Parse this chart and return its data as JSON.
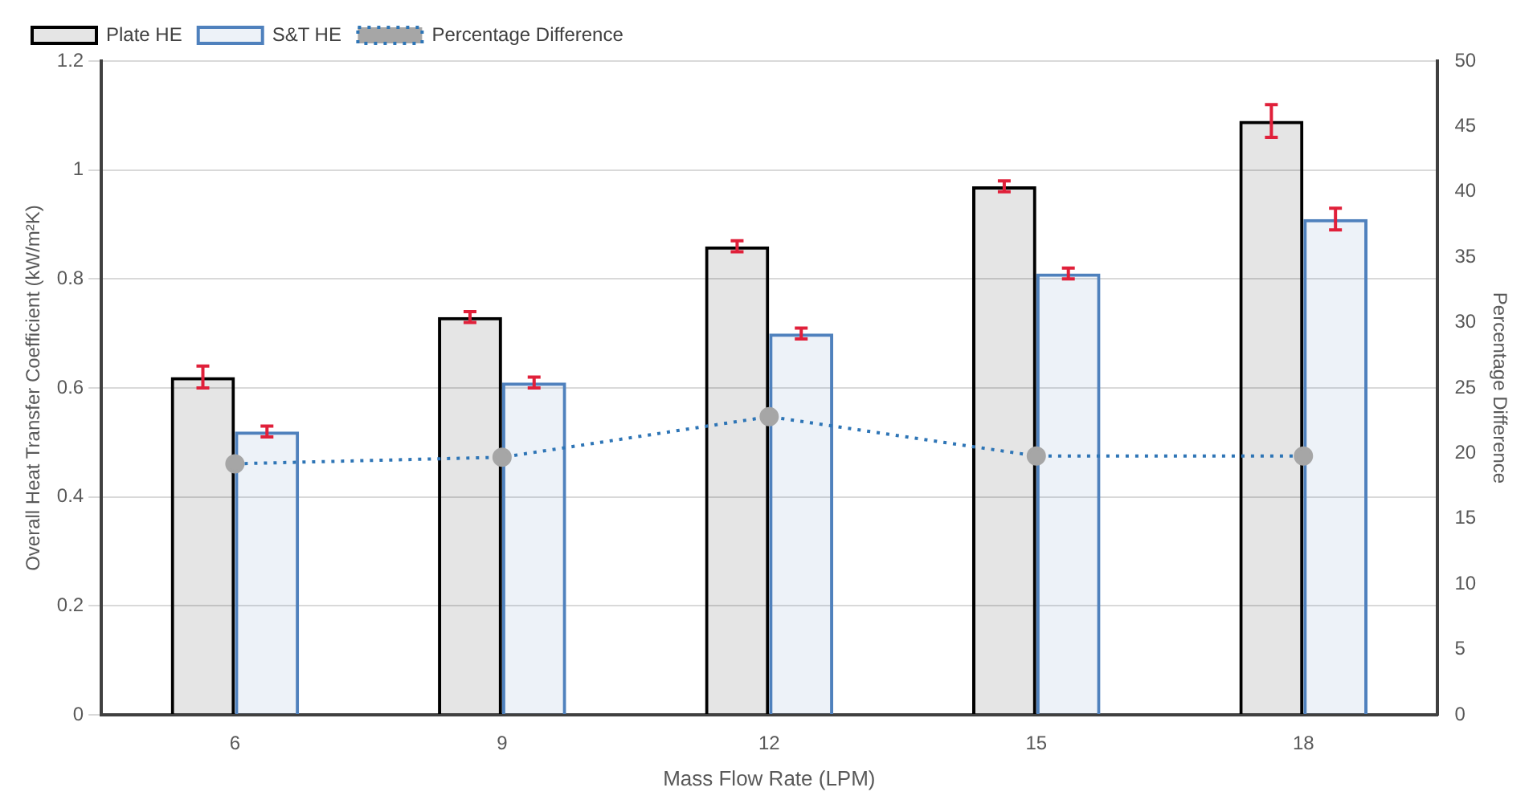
{
  "chart_data": {
    "type": "bar",
    "xlabel": "Mass Flow Rate (LPM)",
    "ylabel": "Overall Heat Transfer Coefficient (kW/m²K)",
    "y2label": "Percentage Difference",
    "categories": [
      "6",
      "9",
      "12",
      "15",
      "18"
    ],
    "series": [
      {
        "name": "Plate HE",
        "color": "#000000",
        "values": [
          0.62,
          0.73,
          0.86,
          0.97,
          1.09
        ],
        "errors": [
          0.02,
          0.01,
          0.01,
          0.01,
          0.03
        ]
      },
      {
        "name": "S&T HE",
        "color": "#4f81bd",
        "values": [
          0.52,
          0.61,
          0.7,
          0.81,
          0.91
        ],
        "errors": [
          0.01,
          0.01,
          0.01,
          0.01,
          0.02
        ]
      },
      {
        "name": "Percentage Difference",
        "type": "line",
        "axis": "y2",
        "color": "#2e75b6",
        "marker": "circle",
        "line_style": "dotted",
        "values": [
          19.2,
          19.7,
          22.8,
          19.8,
          19.8
        ]
      }
    ],
    "ylim": [
      0,
      1.2
    ],
    "yticks": [
      0,
      0.2,
      0.4,
      0.6,
      0.8,
      1,
      1.2
    ],
    "y2lim": [
      0,
      50
    ],
    "y2ticks": [
      0,
      5,
      10,
      15,
      20,
      25,
      30,
      35,
      40,
      45,
      50
    ],
    "grid": "y",
    "legend": "top left"
  }
}
